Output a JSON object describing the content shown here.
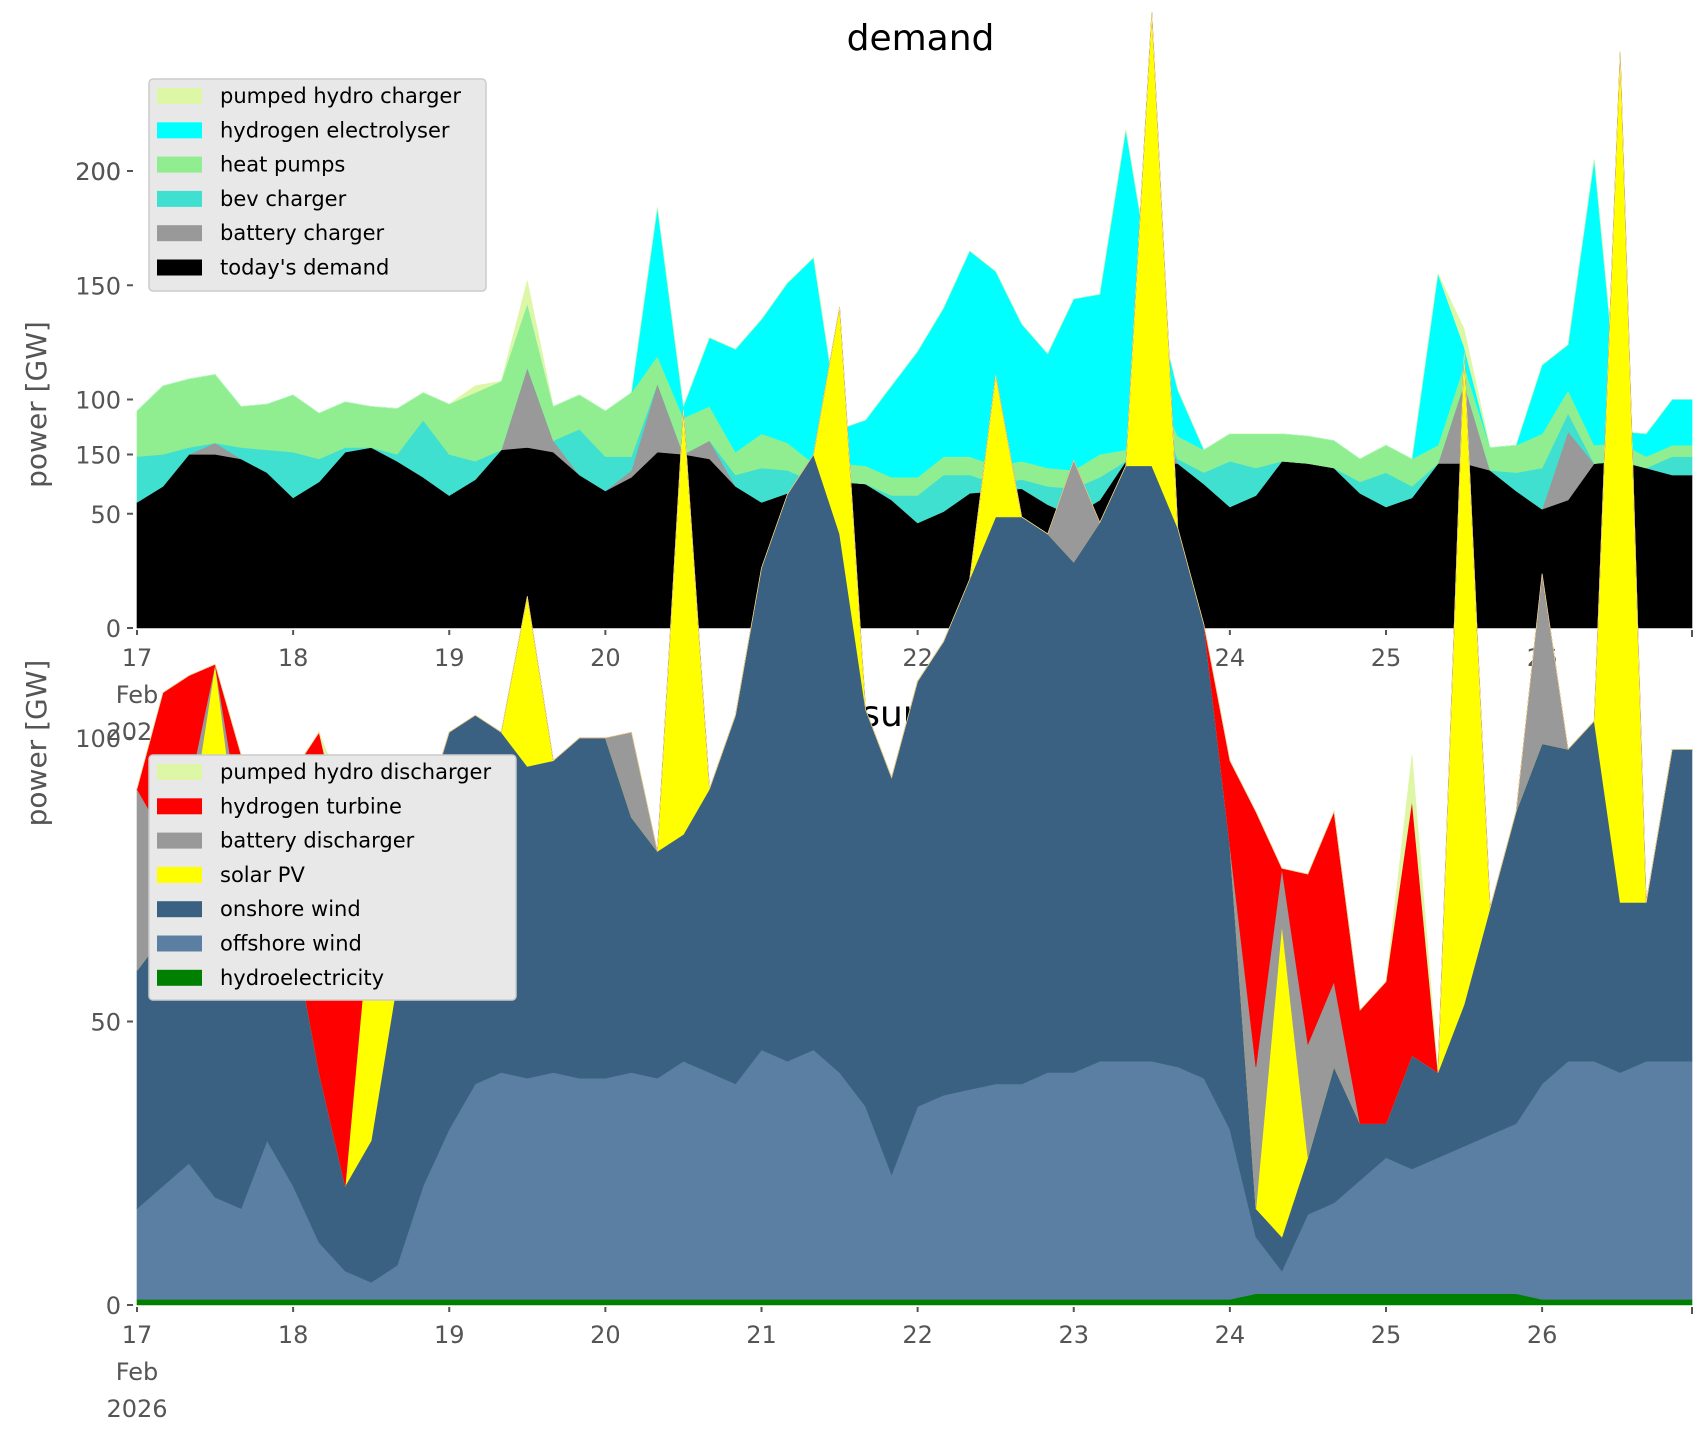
{
  "chart_data": [
    {
      "type": "area",
      "stacked": true,
      "title": "demand",
      "xlabel": "",
      "ylabel": "power [GW]",
      "ylim": [
        0,
        240
      ],
      "yticks": [
        0,
        50,
        100,
        150,
        200
      ],
      "x_start": "2026-02-17T00:00",
      "x_step_hours": 4,
      "x_range_days": [
        17,
        27
      ],
      "xtick_labels": [
        "17\nFeb\n2026",
        "18",
        "19",
        "20",
        "21",
        "22",
        "23",
        "24",
        "25",
        "26"
      ],
      "grid": false,
      "legend_position": "top-left",
      "legend": [
        "pumped hydro charger",
        "hydrogen electrolyser",
        "heat pumps",
        "bev charger",
        "battery charger",
        "today's demand"
      ],
      "series": [
        {
          "name": "today's demand",
          "color": "#000000",
          "values": [
            55,
            62,
            76,
            76,
            74,
            68,
            57,
            64,
            77,
            79,
            73,
            66,
            58,
            65,
            78,
            79,
            77,
            67,
            60,
            66,
            77,
            76,
            74,
            62,
            55,
            59,
            62,
            64,
            63,
            56,
            46,
            51,
            59,
            60,
            61,
            54,
            49,
            56,
            73,
            72,
            72,
            63,
            53,
            58,
            73,
            72,
            70,
            59,
            53,
            57,
            72,
            72,
            69,
            60,
            52,
            56,
            72,
            73,
            70,
            67
          ]
        },
        {
          "name": "battery charger",
          "color": "#999999",
          "values": [
            0,
            0,
            0,
            5,
            0,
            0,
            0,
            0,
            0,
            0,
            0,
            0,
            0,
            0,
            0,
            35,
            5,
            0,
            0,
            3,
            30,
            0,
            8,
            0,
            0,
            0,
            0,
            0,
            0,
            0,
            0,
            0,
            0,
            0,
            0,
            0,
            0,
            0,
            0,
            30,
            0,
            0,
            0,
            0,
            0,
            0,
            0,
            0,
            0,
            0,
            0,
            35,
            0,
            0,
            0,
            30,
            0,
            0,
            0,
            0
          ]
        },
        {
          "name": "bev charger",
          "color": "#40e0d0",
          "values": [
            20,
            14,
            3,
            0,
            5,
            10,
            20,
            10,
            2,
            0,
            3,
            25,
            18,
            8,
            0,
            0,
            0,
            20,
            15,
            6,
            0,
            0,
            0,
            5,
            15,
            10,
            2,
            0,
            0,
            2,
            12,
            16,
            8,
            3,
            4,
            8,
            12,
            10,
            0,
            0,
            2,
            5,
            20,
            12,
            0,
            0,
            0,
            5,
            15,
            5,
            0,
            0,
            0,
            8,
            18,
            8,
            0,
            0,
            0,
            8
          ]
        },
        {
          "name": "heat pumps",
          "color": "#90ee90",
          "values": [
            20,
            30,
            30,
            30,
            18,
            20,
            25,
            20,
            20,
            18,
            20,
            12,
            22,
            30,
            30,
            28,
            15,
            15,
            20,
            28,
            12,
            16,
            15,
            10,
            15,
            12,
            8,
            8,
            8,
            8,
            8,
            8,
            8,
            8,
            8,
            8,
            8,
            10,
            5,
            8,
            10,
            10,
            12,
            15,
            12,
            12,
            12,
            10,
            12,
            12,
            8,
            8,
            10,
            12,
            15,
            10,
            8,
            8,
            5,
            5
          ]
        },
        {
          "name": "hydrogen electrolyser",
          "color": "#00ffff",
          "values": [
            0,
            0,
            0,
            0,
            0,
            0,
            0,
            0,
            0,
            0,
            0,
            0,
            0,
            0,
            0,
            0,
            0,
            0,
            0,
            0,
            65,
            5,
            30,
            45,
            50,
            70,
            90,
            15,
            20,
            40,
            55,
            65,
            90,
            85,
            60,
            50,
            75,
            70,
            140,
            40,
            20,
            0,
            0,
            0,
            0,
            0,
            0,
            0,
            0,
            0,
            75,
            8,
            0,
            0,
            30,
            20,
            125,
            5,
            10,
            20
          ]
        },
        {
          "name": "pumped hydro charger",
          "color": "#ddf7a7",
          "values": [
            0,
            0,
            0,
            0,
            0,
            0,
            0,
            0,
            0,
            0,
            0,
            0,
            0,
            3,
            0,
            10,
            0,
            0,
            0,
            0,
            0,
            0,
            0,
            0,
            0,
            0,
            0,
            0,
            0,
            0,
            0,
            0,
            0,
            0,
            0,
            0,
            0,
            0,
            0,
            0,
            0,
            0,
            0,
            0,
            0,
            0,
            0,
            0,
            0,
            0,
            0,
            8,
            0,
            0,
            0,
            0,
            0,
            0,
            0,
            0
          ]
        }
      ]
    },
    {
      "type": "area",
      "stacked": true,
      "title": "supply",
      "xlabel": "",
      "ylabel": "power [GW]",
      "ylim": [
        0,
        240
      ],
      "yticks": [
        0,
        50,
        100,
        150,
        200
      ],
      "x_start": "2026-02-17T00:00",
      "x_step_hours": 4,
      "x_range_days": [
        17,
        27
      ],
      "xtick_labels": [
        "17\nFeb\n2026",
        "18",
        "19",
        "20",
        "21",
        "22",
        "23",
        "24",
        "25",
        "26"
      ],
      "grid": false,
      "legend_position": "top-left",
      "legend": [
        "pumped hydro discharger",
        "hydrogen turbine",
        "battery discharger",
        "solar PV",
        "onshore wind",
        "offshore wind",
        "hydroelectricity"
      ],
      "series": [
        {
          "name": "hydroelectricity",
          "color": "#008000",
          "values": [
            1,
            1,
            1,
            1,
            1,
            1,
            1,
            1,
            1,
            1,
            1,
            1,
            1,
            1,
            1,
            1,
            1,
            1,
            1,
            1,
            1,
            1,
            1,
            1,
            1,
            1,
            1,
            1,
            1,
            1,
            1,
            1,
            1,
            1,
            1,
            1,
            1,
            1,
            1,
            1,
            1,
            1,
            1,
            2,
            2,
            2,
            2,
            2,
            2,
            2,
            2,
            2,
            2,
            2,
            1,
            1,
            1,
            1,
            1,
            1
          ]
        },
        {
          "name": "offshore wind",
          "color": "#5b7fa3",
          "values": [
            16,
            20,
            24,
            18,
            16,
            28,
            20,
            10,
            5,
            3,
            6,
            20,
            30,
            38,
            40,
            39,
            40,
            39,
            39,
            40,
            39,
            42,
            40,
            38,
            44,
            42,
            44,
            40,
            34,
            22,
            34,
            36,
            37,
            38,
            38,
            40,
            40,
            42,
            42,
            42,
            41,
            39,
            30,
            10,
            4,
            14,
            16,
            20,
            24,
            22,
            24,
            26,
            28,
            30,
            38,
            42,
            42,
            40,
            42,
            42
          ]
        },
        {
          "name": "onshore wind",
          "color": "#3b6182",
          "values": [
            42,
            44,
            40,
            44,
            60,
            55,
            45,
            30,
            15,
            25,
            50,
            65,
            70,
            65,
            60,
            55,
            55,
            60,
            60,
            45,
            40,
            40,
            50,
            65,
            85,
            100,
            105,
            95,
            70,
            70,
            75,
            80,
            90,
            100,
            100,
            95,
            90,
            95,
            105,
            105,
            95,
            80,
            50,
            5,
            6,
            10,
            24,
            10,
            6,
            20,
            15,
            25,
            40,
            55,
            60,
            55,
            60,
            30,
            28,
            55
          ]
        },
        {
          "name": "solar PV",
          "color": "#ffff00",
          "values": [
            0,
            0,
            18,
            50,
            0,
            0,
            0,
            0,
            0,
            42,
            0,
            0,
            0,
            0,
            0,
            30,
            0,
            0,
            0,
            0,
            0,
            75,
            0,
            0,
            0,
            0,
            0,
            40,
            0,
            0,
            0,
            0,
            0,
            25,
            0,
            0,
            0,
            0,
            0,
            80,
            0,
            0,
            0,
            0,
            55,
            0,
            0,
            0,
            0,
            0,
            0,
            115,
            0,
            0,
            0,
            0,
            0,
            150,
            0,
            0
          ]
        },
        {
          "name": "battery discharger",
          "color": "#999999",
          "values": [
            32,
            18,
            8,
            0,
            8,
            0,
            0,
            0,
            0,
            0,
            0,
            0,
            0,
            0,
            0,
            0,
            0,
            0,
            0,
            15,
            0,
            0,
            0,
            0,
            0,
            0,
            0,
            0,
            0,
            0,
            0,
            0,
            0,
            0,
            0,
            0,
            18,
            0,
            0,
            0,
            0,
            0,
            0,
            25,
            10,
            20,
            15,
            0,
            0,
            0,
            0,
            0,
            0,
            0,
            30,
            0,
            0,
            0,
            0,
            0
          ]
        },
        {
          "name": "hydrogen turbine",
          "color": "#ff0000",
          "values": [
            0,
            25,
            20,
            0,
            12,
            0,
            28,
            60,
            60,
            0,
            30,
            0,
            0,
            0,
            0,
            0,
            0,
            0,
            0,
            0,
            0,
            0,
            0,
            0,
            0,
            0,
            0,
            0,
            0,
            0,
            0,
            0,
            0,
            0,
            0,
            0,
            0,
            0,
            0,
            0,
            0,
            0,
            15,
            45,
            0,
            30,
            30,
            20,
            25,
            45,
            0,
            0,
            0,
            0,
            0,
            0,
            0,
            0,
            0,
            0
          ]
        },
        {
          "name": "pumped hydro discharger",
          "color": "#ddf7a7",
          "values": [
            0,
            0,
            0,
            0,
            0,
            0,
            0,
            0,
            8,
            0,
            5,
            0,
            0,
            0,
            0,
            0,
            0,
            0,
            0,
            0,
            0,
            0,
            0,
            0,
            0,
            0,
            0,
            0,
            0,
            0,
            0,
            0,
            0,
            0,
            0,
            0,
            0,
            0,
            0,
            0,
            0,
            0,
            0,
            0,
            0,
            0,
            0,
            0,
            0,
            8,
            0,
            0,
            0,
            0,
            0,
            0,
            0,
            0,
            0,
            0
          ]
        }
      ]
    }
  ]
}
